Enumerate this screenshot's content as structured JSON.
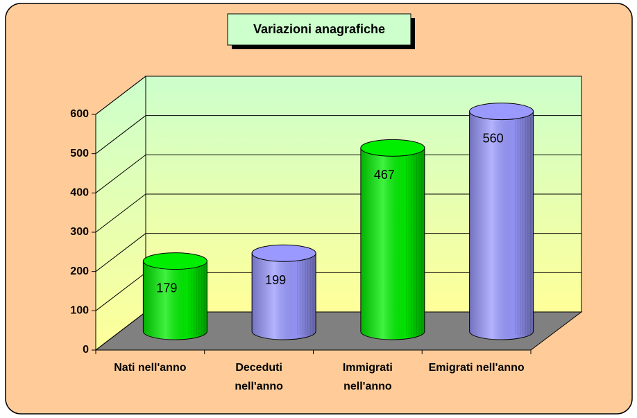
{
  "chart_data": {
    "type": "cylinder",
    "title": "Variazioni anagrafiche",
    "categories": [
      "Nati nell'anno",
      "Deceduti nell'anno",
      "Immigrati nell'anno",
      "Emigrati nell'anno"
    ],
    "values": [
      179,
      199,
      467,
      560
    ],
    "colors": [
      "#00ee00",
      "#9999ff",
      "#00ee00",
      "#9999ff"
    ],
    "ylim": [
      0,
      600
    ],
    "yticks": [
      0,
      100,
      200,
      300,
      400,
      500,
      600
    ],
    "grid": true
  }
}
